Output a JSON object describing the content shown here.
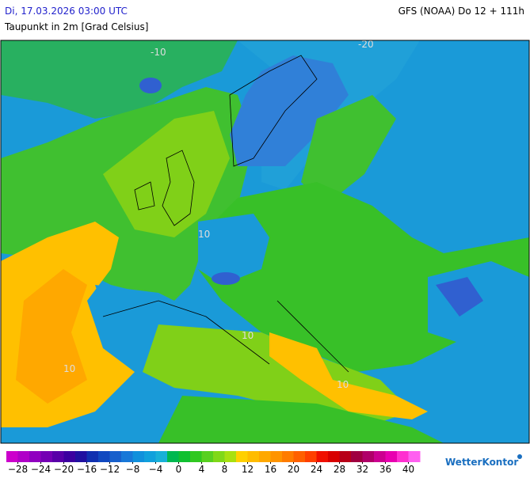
{
  "header": {
    "date": "Di, 17.03.2026 03:00 UTC",
    "model": "GFS (NOAA) Do 12 + 111h",
    "parameter": "Taupunkt in 2m [Grad Celsius]"
  },
  "map_labels": [
    "-20",
    "-10",
    "10",
    "10",
    "10",
    "10"
  ],
  "colorbar": {
    "range": [
      -30,
      42
    ],
    "colors": [
      "#cc00cc",
      "#b000c8",
      "#9000c0",
      "#7400b4",
      "#5800a8",
      "#3c00a0",
      "#2010a0",
      "#1030b0",
      "#1048c0",
      "#1860cc",
      "#1878d8",
      "#1090dc",
      "#10a0dc",
      "#18b0d8",
      "#00b850",
      "#10c030",
      "#30c820",
      "#58d020",
      "#80d818",
      "#a8e010",
      "#ffd000",
      "#ffbc00",
      "#ffa800",
      "#ff9400",
      "#ff7c00",
      "#ff6000",
      "#ff4000",
      "#f01000",
      "#d80000",
      "#b80018",
      "#a00040",
      "#b00068",
      "#cc0090",
      "#e800b0",
      "#ff30d0",
      "#ff60f0"
    ],
    "ticks": [
      {
        "value": -28,
        "label": "−28"
      },
      {
        "value": -24,
        "label": "−24"
      },
      {
        "value": -20,
        "label": "−20"
      },
      {
        "value": -16,
        "label": "−16"
      },
      {
        "value": -12,
        "label": "−12"
      },
      {
        "value": -8,
        "label": "−8"
      },
      {
        "value": -4,
        "label": "−4"
      },
      0,
      4,
      8,
      12,
      16,
      20,
      24,
      28,
      32,
      36,
      40
    ]
  },
  "logo": "WetterKontor"
}
